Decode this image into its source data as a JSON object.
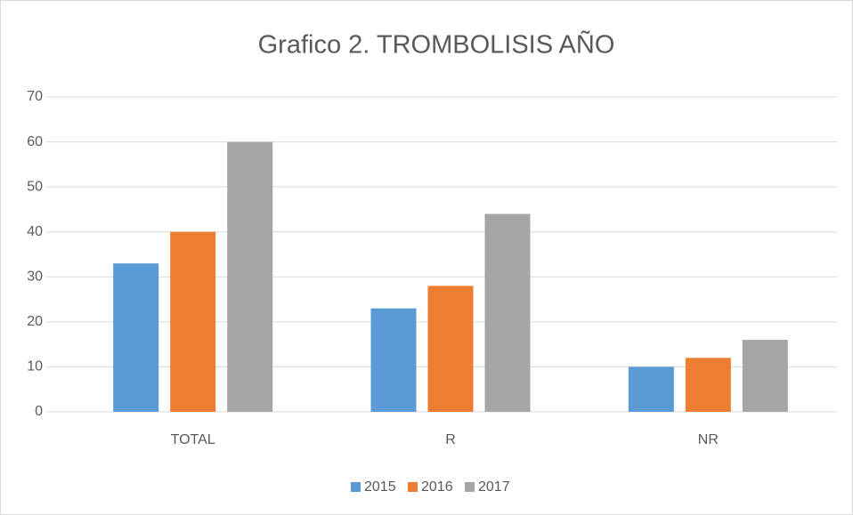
{
  "chart_data": {
    "type": "bar",
    "title": "Grafico 2. TROMBOLISIS AÑO",
    "categories": [
      "TOTAL",
      "R",
      "NR"
    ],
    "series": [
      {
        "name": "2015",
        "color": "#5b9bd5",
        "values": [
          33,
          23,
          10
        ]
      },
      {
        "name": "2016",
        "color": "#ed7d31",
        "values": [
          40,
          28,
          12
        ]
      },
      {
        "name": "2017",
        "color": "#a5a5a5",
        "values": [
          60,
          44,
          16
        ]
      }
    ],
    "ylim": [
      0,
      70
    ],
    "yticks": [
      0,
      10,
      20,
      30,
      40,
      50,
      60,
      70
    ],
    "grid": true,
    "legend": "bottom"
  }
}
